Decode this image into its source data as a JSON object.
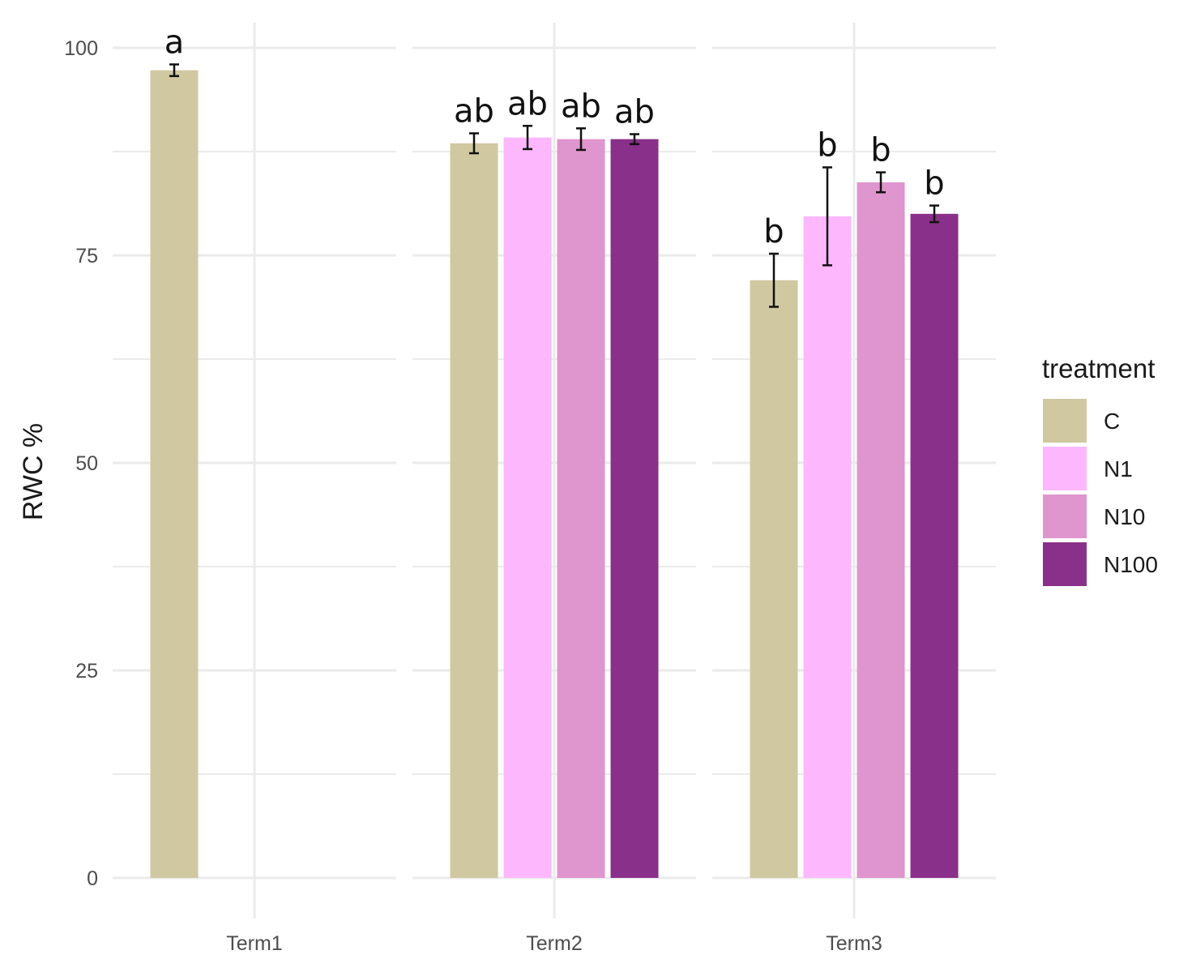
{
  "chart_data": {
    "type": "bar",
    "ylabel": "RWC %",
    "xlabel": "",
    "ylim": [
      0,
      100
    ],
    "yticks": [
      "0",
      "25",
      "50",
      "75",
      "100"
    ],
    "categories": [
      "Term1",
      "Term2",
      "Term3"
    ],
    "legend": {
      "title": "treatment",
      "position": "right"
    },
    "grid": true,
    "series": [
      {
        "name": "C",
        "color": "#cfc8a1",
        "values": [
          97.3,
          88.5,
          72.0
        ],
        "errors": [
          0.7,
          1.2,
          3.2
        ],
        "labels": [
          "a",
          "ab",
          "b"
        ]
      },
      {
        "name": "N1",
        "color": "#fdb8fd",
        "values": [
          null,
          89.2,
          79.7
        ],
        "errors": [
          null,
          1.4,
          5.9
        ],
        "labels": [
          null,
          "ab",
          "b"
        ]
      },
      {
        "name": "N10",
        "color": "#df95cd",
        "values": [
          null,
          89.0,
          83.8
        ],
        "errors": [
          null,
          1.3,
          1.2
        ],
        "labels": [
          null,
          "ab",
          "b"
        ]
      },
      {
        "name": "N100",
        "color": "#89308a",
        "values": [
          null,
          89.0,
          80.0
        ],
        "errors": [
          null,
          0.6,
          1.0
        ],
        "labels": [
          null,
          "ab",
          "b"
        ]
      }
    ]
  }
}
